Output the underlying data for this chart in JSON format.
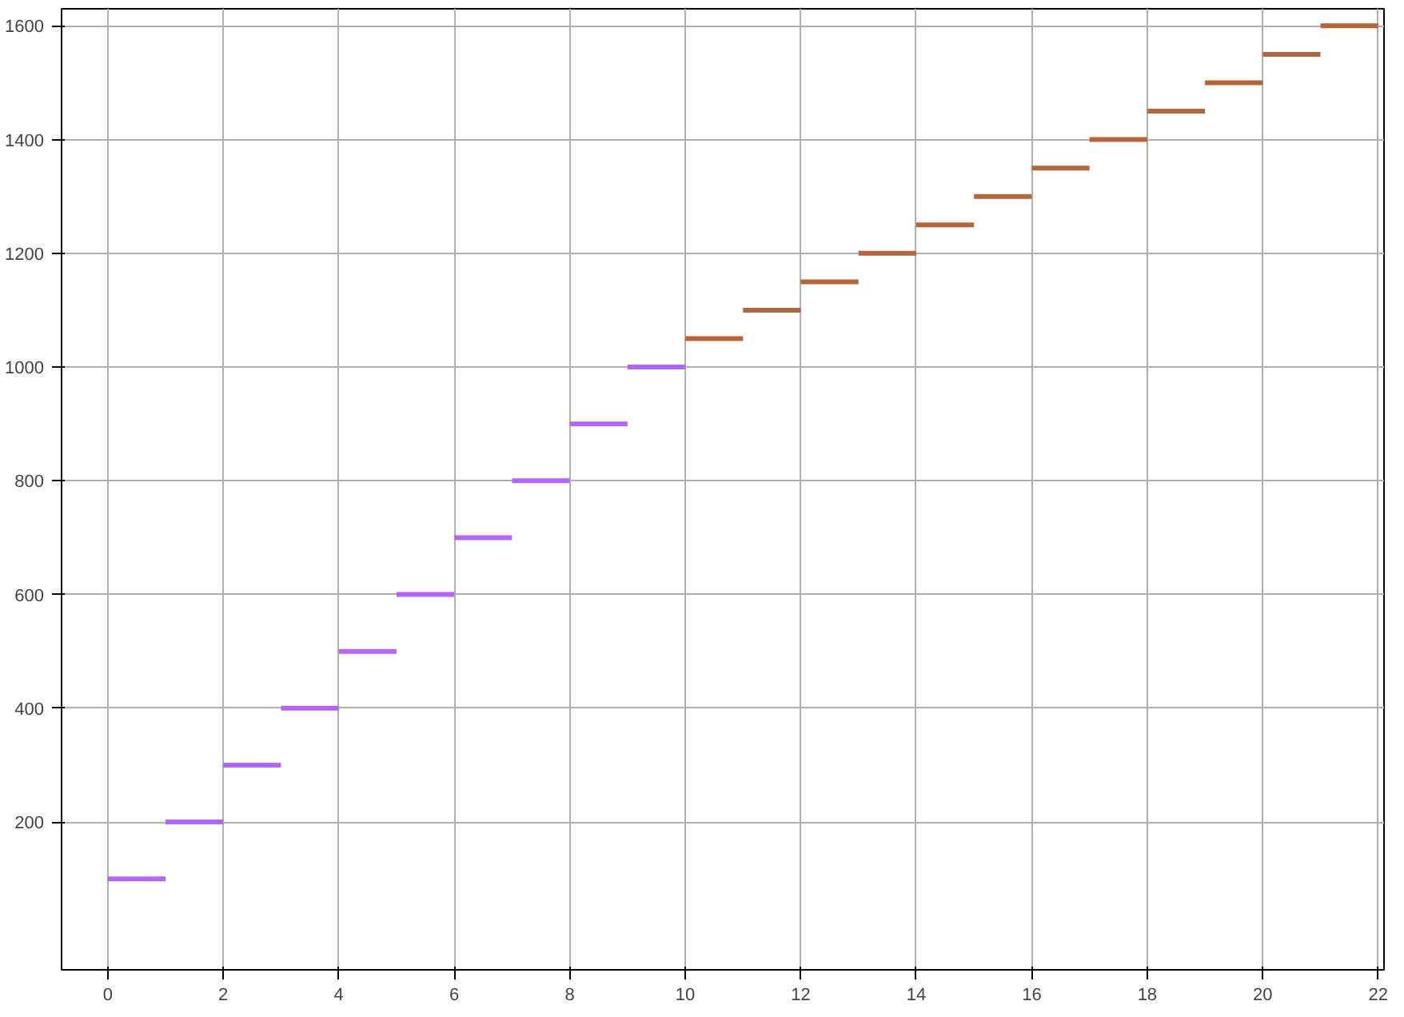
{
  "chart_data": {
    "type": "step",
    "xlim": [
      -0.8,
      22.1
    ],
    "ylim": [
      -60,
      1630
    ],
    "xticks": [
      0,
      2,
      4,
      6,
      8,
      10,
      12,
      14,
      16,
      18,
      20,
      22
    ],
    "yticks": [
      200,
      400,
      600,
      800,
      1000,
      1200,
      1400,
      1600
    ],
    "grid": true,
    "series": [
      {
        "color": "#b266ff",
        "x": [
          0,
          1,
          2,
          3,
          4,
          5,
          6,
          7,
          8,
          9,
          10
        ],
        "values": [
          100,
          200,
          300,
          400,
          500,
          600,
          700,
          800,
          900,
          1000,
          1000
        ]
      },
      {
        "color": "#b5653a",
        "x": [
          10,
          11,
          12,
          13,
          14,
          15,
          16,
          17,
          18,
          19,
          20,
          21,
          22
        ],
        "values": [
          1050,
          1100,
          1150,
          1200,
          1250,
          1300,
          1350,
          1400,
          1450,
          1500,
          1550,
          1600,
          1600
        ]
      }
    ]
  }
}
